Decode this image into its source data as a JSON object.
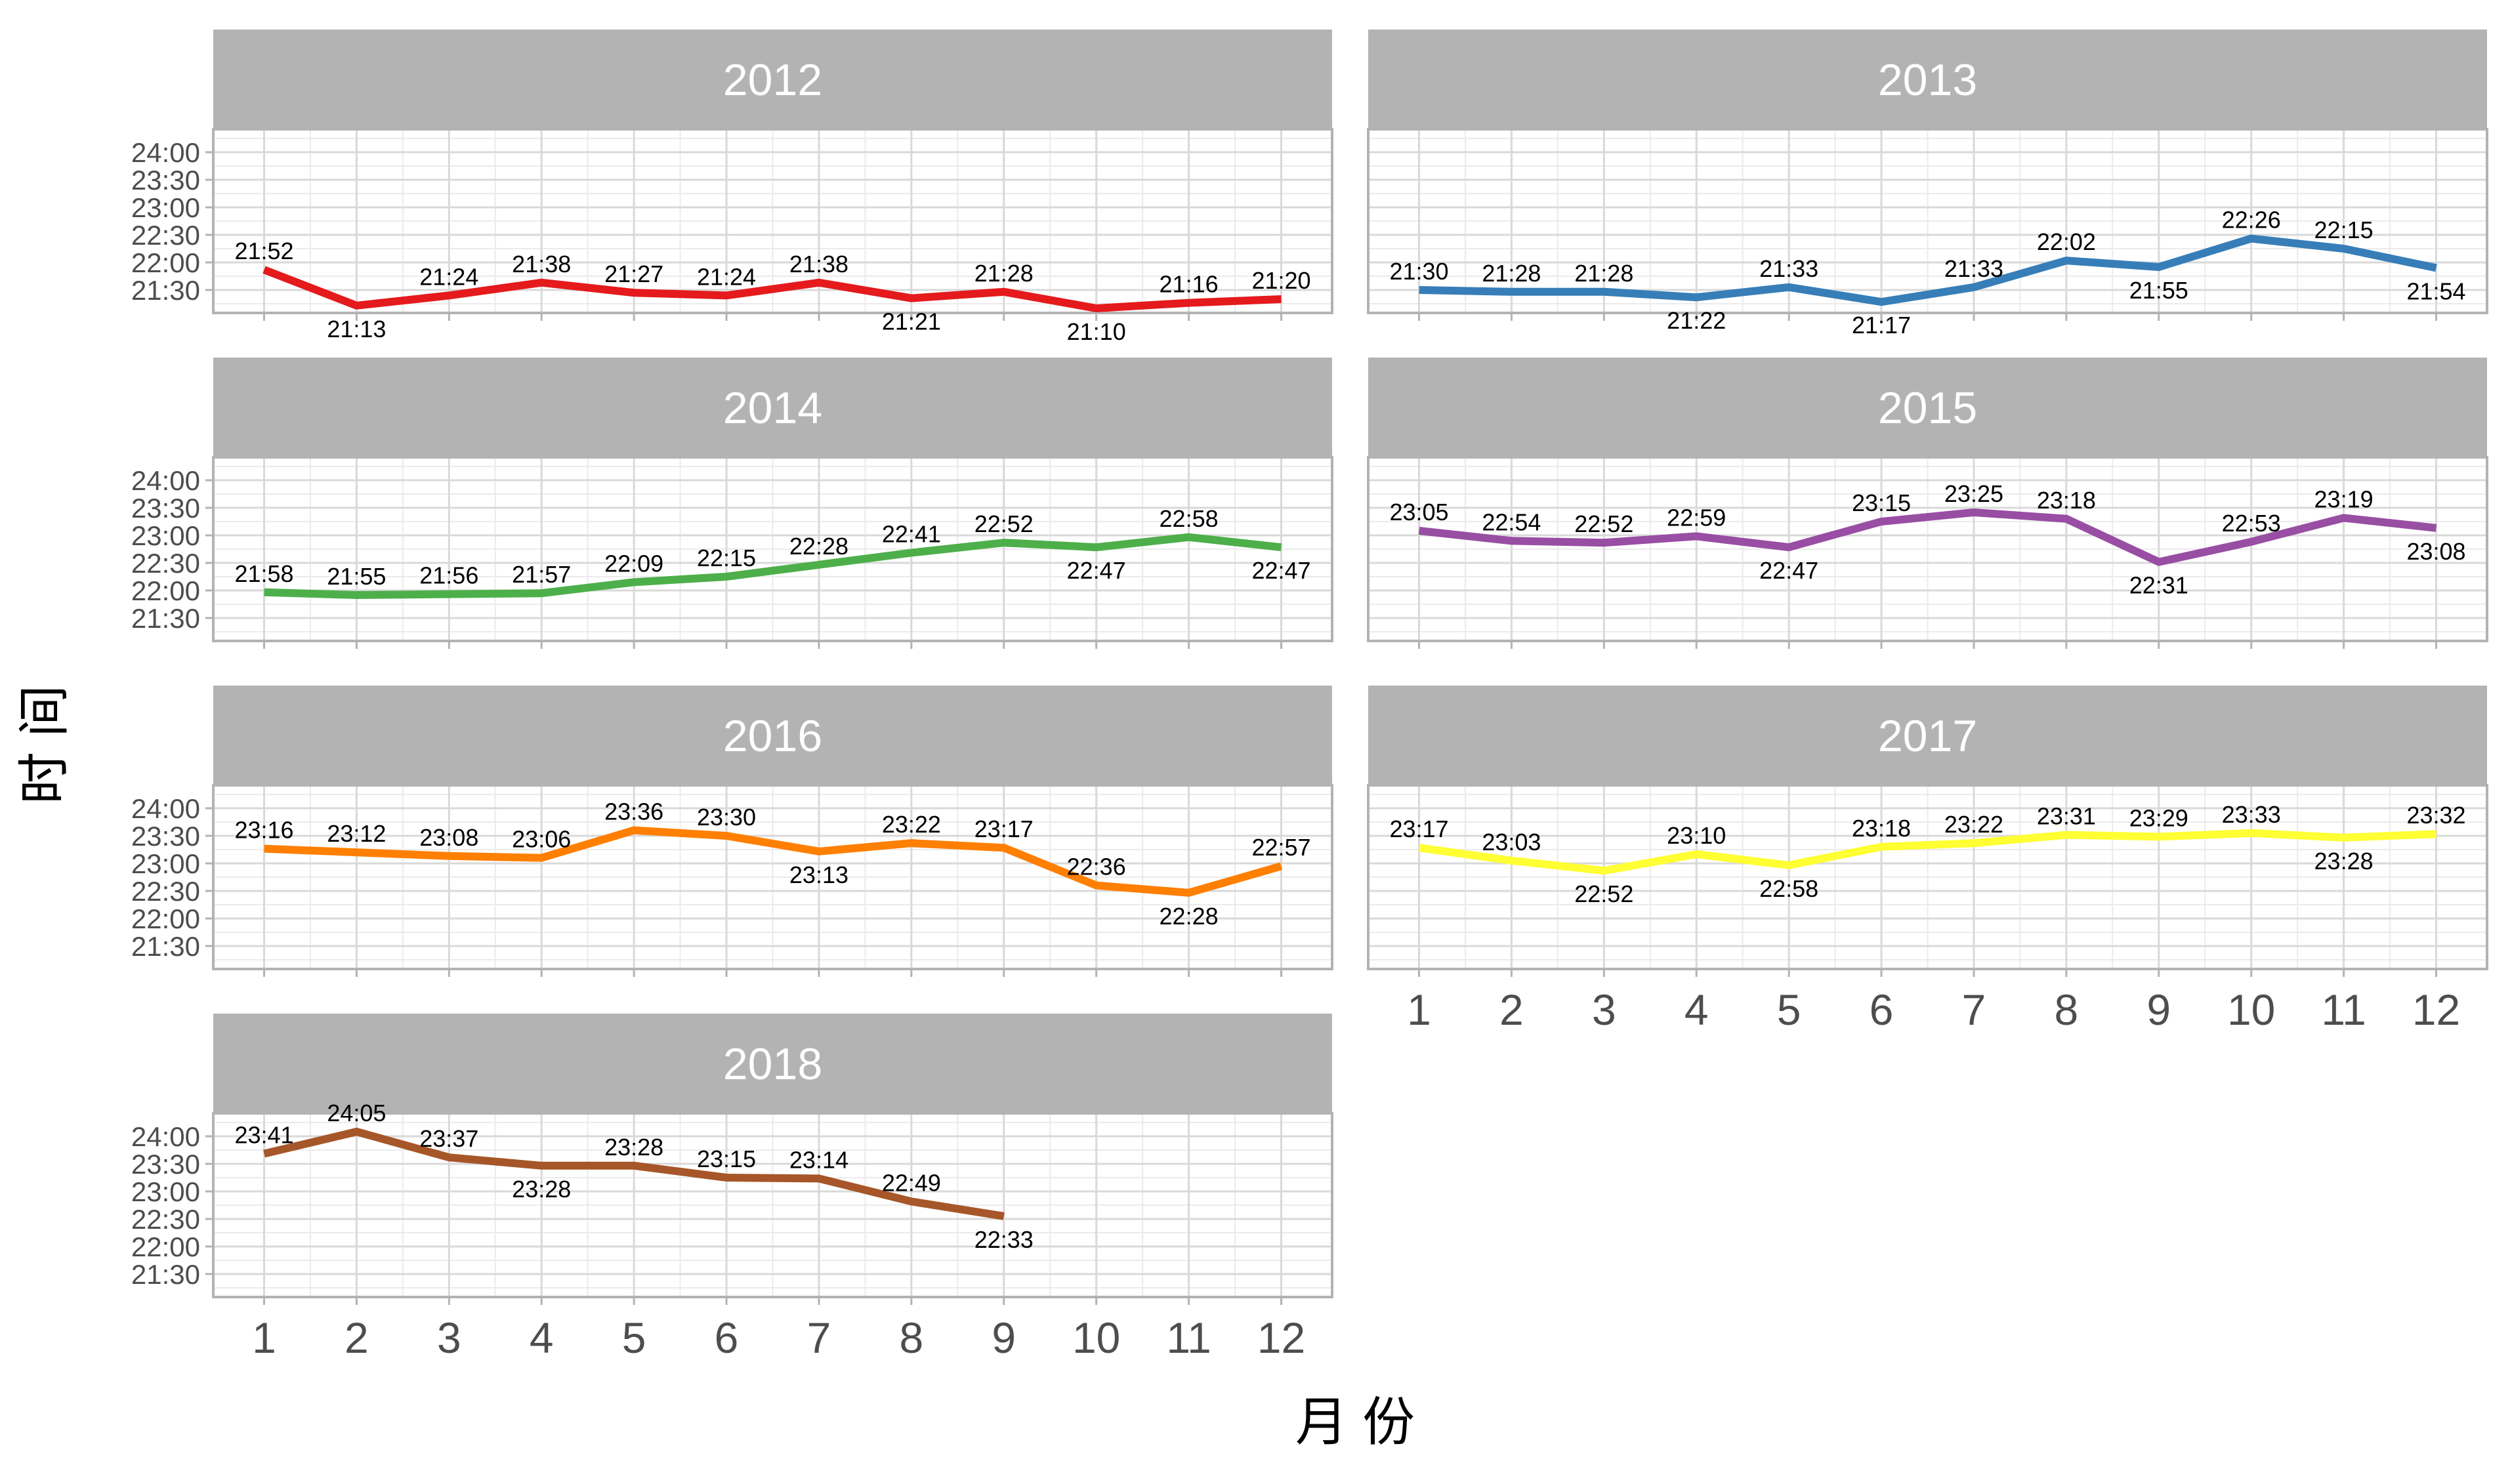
{
  "chart_data": {
    "type": "line",
    "title": "",
    "xlabel": "月 份",
    "ylabel": "时 间",
    "x_ticks": [
      1,
      2,
      3,
      4,
      5,
      6,
      7,
      8,
      9,
      10,
      11,
      12
    ],
    "y_ticks": [
      "21:30",
      "22:00",
      "22:30",
      "23:00",
      "23:30",
      "24:00"
    ],
    "ylim": [
      "21:05",
      "24:25"
    ],
    "grid": true,
    "facet_by": "year",
    "facet_layout": "2 columns",
    "strip_color": "#b3b3b3",
    "panels": [
      {
        "year": "2012",
        "color": "#e41a1c",
        "x": [
          1,
          2,
          3,
          4,
          5,
          6,
          7,
          8,
          9,
          10,
          11,
          12
        ],
        "y": [
          "21:52",
          "21:13",
          "21:24",
          "21:38",
          "21:27",
          "21:24",
          "21:38",
          "21:21",
          "21:28",
          "21:10",
          "21:16",
          "21:20"
        ]
      },
      {
        "year": "2013",
        "color": "#377eb8",
        "x": [
          1,
          2,
          3,
          4,
          5,
          6,
          7,
          8,
          9,
          10,
          11,
          12
        ],
        "y": [
          "21:30",
          "21:28",
          "21:28",
          "21:22",
          "21:33",
          "21:17",
          "21:33",
          "22:02",
          "21:55",
          "22:26",
          "22:15",
          "21:54"
        ]
      },
      {
        "year": "2014",
        "color": "#4daf4a",
        "x": [
          1,
          2,
          3,
          4,
          5,
          6,
          7,
          8,
          9,
          10,
          11,
          12
        ],
        "y": [
          "21:58",
          "21:55",
          "21:56",
          "21:57",
          "22:09",
          "22:15",
          "22:28",
          "22:41",
          "22:52",
          "22:47",
          "22:58",
          "22:47"
        ]
      },
      {
        "year": "2015",
        "color": "#984ea3",
        "x": [
          1,
          2,
          3,
          4,
          5,
          6,
          7,
          8,
          9,
          10,
          11,
          12
        ],
        "y": [
          "23:05",
          "22:54",
          "22:52",
          "22:59",
          "22:47",
          "23:15",
          "23:25",
          "23:18",
          "22:31",
          "22:53",
          "23:19",
          "23:08"
        ]
      },
      {
        "year": "2016",
        "color": "#ff7f00",
        "x": [
          1,
          2,
          3,
          4,
          5,
          6,
          7,
          8,
          9,
          10,
          11,
          12
        ],
        "y": [
          "23:16",
          "23:12",
          "23:08",
          "23:06",
          "23:36",
          "23:30",
          "23:13",
          "23:22",
          "23:17",
          "22:36",
          "22:28",
          "22:57"
        ]
      },
      {
        "year": "2017",
        "color": "#ffff33",
        "x": [
          1,
          2,
          3,
          4,
          5,
          6,
          7,
          8,
          9,
          10,
          11,
          12
        ],
        "y": [
          "23:17",
          "23:03",
          "22:52",
          "23:10",
          "22:58",
          "23:18",
          "23:22",
          "23:31",
          "23:29",
          "23:33",
          "23:28",
          "23:32"
        ]
      },
      {
        "year": "2018",
        "color": "#a65628",
        "x": [
          1,
          2,
          3,
          4,
          5,
          6,
          7,
          8,
          9
        ],
        "y": [
          "23:41",
          "24:05",
          "23:37",
          "23:28",
          "23:28",
          "23:15",
          "23:14",
          "22:49",
          "22:33"
        ]
      }
    ]
  }
}
